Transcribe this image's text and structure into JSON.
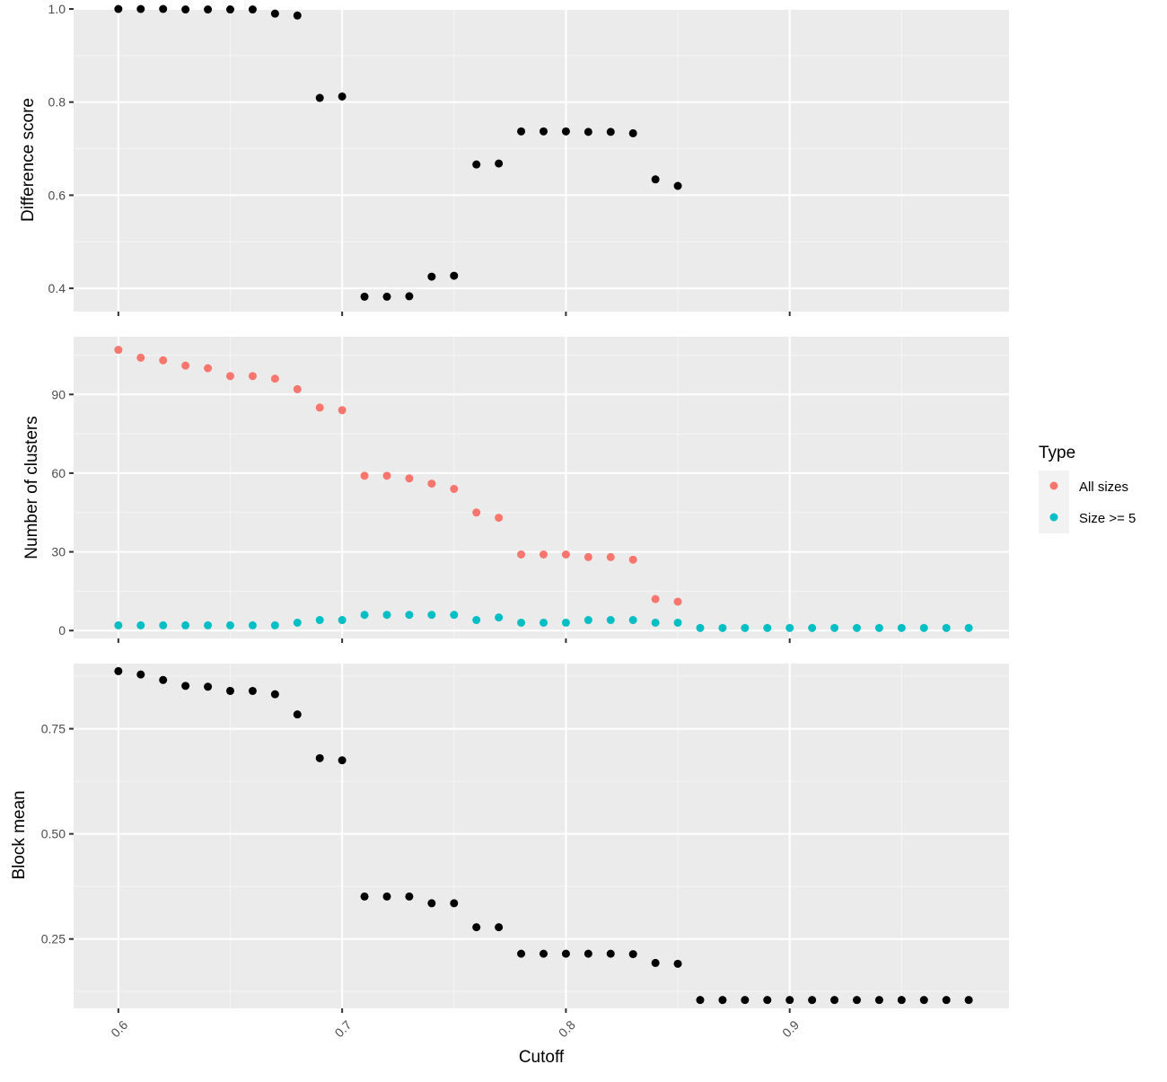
{
  "colors": {
    "panel_bg": "#ebebeb",
    "grid_major": "#ffffff",
    "grid_minor": "#f5f5f5",
    "tick_text": "#4d4d4d",
    "tick_mark": "#333333",
    "black_points": "#000000",
    "all_sizes": "#f8766d",
    "size_ge_5": "#00bfc4",
    "legend_key_bg": "#f2f2f2"
  },
  "chart_data": [
    {
      "type": "scatter",
      "ylabel": "Difference score",
      "xlabel": "",
      "xlim": [
        0.58,
        0.998
      ],
      "ylim": [
        0.35,
        1.0
      ],
      "x_ticks": [
        0.6,
        0.7,
        0.8,
        0.9
      ],
      "y_ticks": [
        0.4,
        0.6,
        0.8,
        1.0
      ],
      "y_tick_labels": [
        "0.4",
        "0.6",
        "0.8",
        "1.0"
      ],
      "grid": true,
      "series": [
        {
          "color": "#000000",
          "points": [
            [
              0.6,
              1.0
            ],
            [
              0.61,
              1.0
            ],
            [
              0.62,
              1.0
            ],
            [
              0.63,
              0.999
            ],
            [
              0.64,
              0.999
            ],
            [
              0.65,
              0.999
            ],
            [
              0.66,
              0.999
            ],
            [
              0.67,
              0.99
            ],
            [
              0.68,
              0.986
            ],
            [
              0.69,
              0.809
            ],
            [
              0.7,
              0.812
            ],
            [
              0.71,
              0.382
            ],
            [
              0.72,
              0.382
            ],
            [
              0.73,
              0.383
            ],
            [
              0.74,
              0.425
            ],
            [
              0.75,
              0.427
            ],
            [
              0.76,
              0.666
            ],
            [
              0.77,
              0.668
            ],
            [
              0.78,
              0.737
            ],
            [
              0.79,
              0.737
            ],
            [
              0.8,
              0.737
            ],
            [
              0.81,
              0.736
            ],
            [
              0.82,
              0.736
            ],
            [
              0.83,
              0.733
            ],
            [
              0.84,
              0.634
            ],
            [
              0.85,
              0.62
            ]
          ]
        }
      ]
    },
    {
      "type": "scatter",
      "ylabel": "Number of clusters",
      "xlabel": "",
      "xlim": [
        0.58,
        0.998
      ],
      "ylim": [
        -3,
        112
      ],
      "x_ticks": [
        0.6,
        0.7,
        0.8,
        0.9
      ],
      "y_ticks": [
        0,
        30,
        60,
        90
      ],
      "y_tick_labels": [
        "0",
        "30",
        "60",
        "90"
      ],
      "grid": true,
      "series": [
        {
          "name": "All sizes",
          "color": "#f8766d",
          "points": [
            [
              0.6,
              107
            ],
            [
              0.61,
              104
            ],
            [
              0.62,
              103
            ],
            [
              0.63,
              101
            ],
            [
              0.64,
              100
            ],
            [
              0.65,
              97
            ],
            [
              0.66,
              97
            ],
            [
              0.67,
              96
            ],
            [
              0.68,
              92
            ],
            [
              0.69,
              85
            ],
            [
              0.7,
              84
            ],
            [
              0.71,
              59
            ],
            [
              0.72,
              59
            ],
            [
              0.73,
              58
            ],
            [
              0.74,
              56
            ],
            [
              0.75,
              54
            ],
            [
              0.76,
              45
            ],
            [
              0.77,
              43
            ],
            [
              0.78,
              29
            ],
            [
              0.79,
              29
            ],
            [
              0.8,
              29
            ],
            [
              0.81,
              28
            ],
            [
              0.82,
              28
            ],
            [
              0.83,
              27
            ],
            [
              0.84,
              12
            ],
            [
              0.85,
              11
            ]
          ]
        },
        {
          "name": "Size >= 5",
          "color": "#00bfc4",
          "points": [
            [
              0.6,
              2
            ],
            [
              0.61,
              2
            ],
            [
              0.62,
              2
            ],
            [
              0.63,
              2
            ],
            [
              0.64,
              2
            ],
            [
              0.65,
              2
            ],
            [
              0.66,
              2
            ],
            [
              0.67,
              2
            ],
            [
              0.68,
              3
            ],
            [
              0.69,
              4
            ],
            [
              0.7,
              4
            ],
            [
              0.71,
              6
            ],
            [
              0.72,
              6
            ],
            [
              0.73,
              6
            ],
            [
              0.74,
              6
            ],
            [
              0.75,
              6
            ],
            [
              0.76,
              4
            ],
            [
              0.77,
              5
            ],
            [
              0.78,
              3
            ],
            [
              0.79,
              3
            ],
            [
              0.8,
              3
            ],
            [
              0.81,
              4
            ],
            [
              0.82,
              4
            ],
            [
              0.83,
              4
            ],
            [
              0.84,
              3
            ],
            [
              0.85,
              3
            ],
            [
              0.86,
              1
            ],
            [
              0.87,
              1
            ],
            [
              0.88,
              1
            ],
            [
              0.89,
              1
            ],
            [
              0.9,
              1
            ],
            [
              0.91,
              1
            ],
            [
              0.92,
              1
            ],
            [
              0.93,
              1
            ],
            [
              0.94,
              1
            ],
            [
              0.95,
              1
            ],
            [
              0.96,
              1
            ],
            [
              0.97,
              1
            ],
            [
              0.98,
              1
            ]
          ]
        }
      ]
    },
    {
      "type": "scatter",
      "ylabel": "Block mean",
      "xlabel": "Cutoff",
      "xlim": [
        0.58,
        0.998
      ],
      "ylim": [
        0.085,
        0.905
      ],
      "x_ticks": [
        0.6,
        0.7,
        0.8,
        0.9
      ],
      "x_tick_labels": [
        "0.6",
        "0.7",
        "0.8",
        "0.9"
      ],
      "y_ticks": [
        0.25,
        0.5,
        0.75
      ],
      "y_tick_labels": [
        "0.25",
        "0.50",
        "0.75"
      ],
      "grid": true,
      "series": [
        {
          "color": "#000000",
          "points": [
            [
              0.6,
              0.887
            ],
            [
              0.61,
              0.879
            ],
            [
              0.62,
              0.866
            ],
            [
              0.63,
              0.852
            ],
            [
              0.64,
              0.85
            ],
            [
              0.65,
              0.84
            ],
            [
              0.66,
              0.84
            ],
            [
              0.67,
              0.832
            ],
            [
              0.68,
              0.784
            ],
            [
              0.69,
              0.68
            ],
            [
              0.7,
              0.675
            ],
            [
              0.71,
              0.351
            ],
            [
              0.72,
              0.351
            ],
            [
              0.73,
              0.351
            ],
            [
              0.74,
              0.335
            ],
            [
              0.75,
              0.335
            ],
            [
              0.76,
              0.278
            ],
            [
              0.77,
              0.278
            ],
            [
              0.78,
              0.215
            ],
            [
              0.79,
              0.215
            ],
            [
              0.8,
              0.215
            ],
            [
              0.81,
              0.215
            ],
            [
              0.82,
              0.215
            ],
            [
              0.83,
              0.214
            ],
            [
              0.84,
              0.193
            ],
            [
              0.85,
              0.191
            ],
            [
              0.86,
              0.105
            ],
            [
              0.87,
              0.105
            ],
            [
              0.88,
              0.105
            ],
            [
              0.89,
              0.105
            ],
            [
              0.9,
              0.105
            ],
            [
              0.91,
              0.105
            ],
            [
              0.92,
              0.105
            ],
            [
              0.93,
              0.105
            ],
            [
              0.94,
              0.105
            ],
            [
              0.95,
              0.105
            ],
            [
              0.96,
              0.105
            ],
            [
              0.97,
              0.105
            ],
            [
              0.98,
              0.105
            ]
          ]
        }
      ]
    }
  ],
  "legend": {
    "title": "Type",
    "items": [
      {
        "label": "All sizes",
        "color": "#f8766d"
      },
      {
        "label": "Size >= 5",
        "color": "#00bfc4"
      }
    ]
  }
}
